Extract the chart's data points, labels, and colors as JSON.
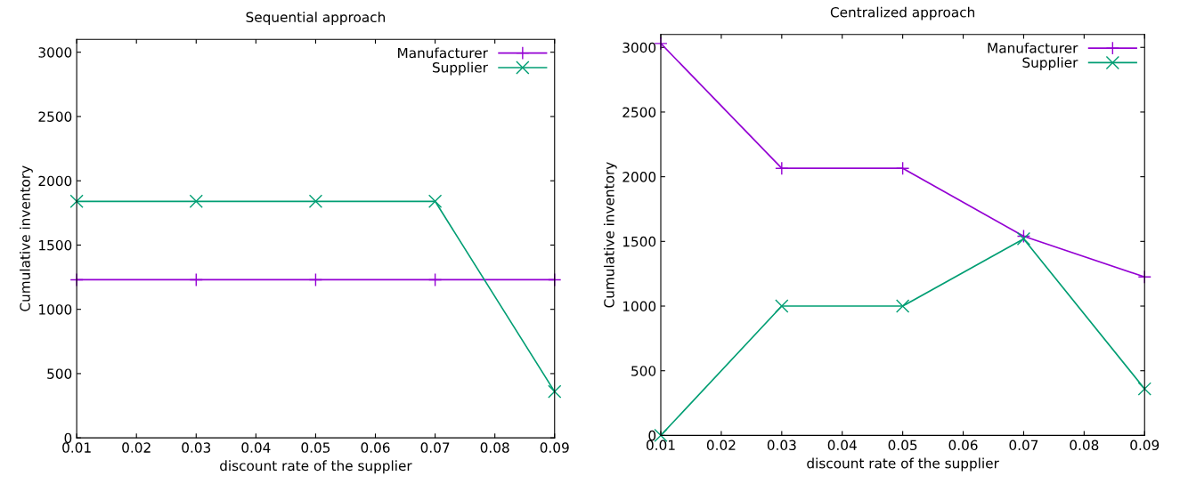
{
  "chart_data": [
    {
      "type": "line",
      "title": "Sequential approach",
      "xlabel": "discount rate of the supplier",
      "ylabel": "Cumulative inventory",
      "x": [
        0.01,
        0.03,
        0.05,
        0.07,
        0.09
      ],
      "xlim": [
        0.01,
        0.09
      ],
      "xticks": [
        0.01,
        0.02,
        0.03,
        0.04,
        0.05,
        0.06,
        0.07,
        0.08,
        0.09
      ],
      "ylim": [
        0,
        3100
      ],
      "yticks": [
        0,
        500,
        1000,
        1500,
        2000,
        2500,
        3000
      ],
      "legend": "top right",
      "grid": false,
      "series": [
        {
          "name": "Manufacturer",
          "color": "#9400d3",
          "marker": "plus",
          "values": [
            1230,
            1230,
            1230,
            1230,
            1230
          ]
        },
        {
          "name": "Supplier",
          "color": "#009e73",
          "marker": "cross",
          "values": [
            1840,
            1840,
            1840,
            1840,
            360
          ]
        }
      ]
    },
    {
      "type": "line",
      "title": "Centralized approach",
      "xlabel": "discount rate of the supplier",
      "ylabel": "Cumulative inventory",
      "x": [
        0.01,
        0.03,
        0.05,
        0.07,
        0.09
      ],
      "xlim": [
        0.01,
        0.09
      ],
      "xticks": [
        0.01,
        0.02,
        0.03,
        0.04,
        0.05,
        0.06,
        0.07,
        0.08,
        0.09
      ],
      "ylim": [
        0,
        3100
      ],
      "yticks": [
        0,
        500,
        1000,
        1500,
        2000,
        2500,
        3000
      ],
      "legend": "top right",
      "grid": false,
      "series": [
        {
          "name": "Manufacturer",
          "color": "#9400d3",
          "marker": "plus",
          "values": [
            3030,
            2065,
            2065,
            1540,
            1225
          ]
        },
        {
          "name": "Supplier",
          "color": "#009e73",
          "marker": "cross",
          "values": [
            0,
            1000,
            1000,
            1520,
            360
          ]
        }
      ]
    }
  ]
}
